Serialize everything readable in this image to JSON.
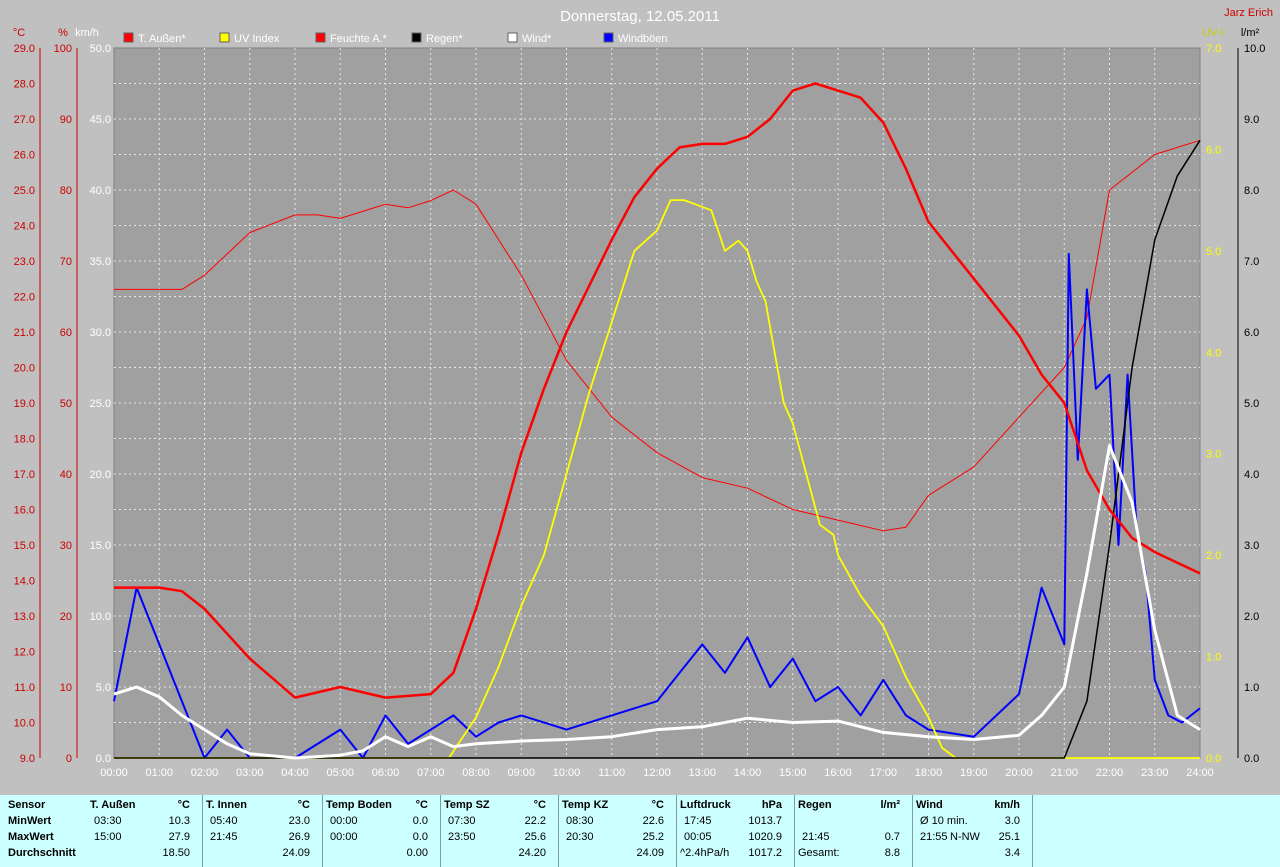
{
  "title": "Donnerstag, 12.05.2011",
  "author": "Jarz Erich",
  "colors": {
    "background": "#c0c0c0",
    "plot_bg": "#a0a0a0",
    "temp": "#ff0000",
    "uv": "#ffff00",
    "humidity": "#ff0000",
    "rain": "#000000",
    "wind": "#ffffff",
    "gust": "#0000ff",
    "stats_bg": "#ccffff"
  },
  "axes": {
    "left_units": [
      "°C",
      "%",
      "km/h"
    ],
    "right_units": [
      "UV-I",
      "l/m²"
    ],
    "temp_ticks": [
      "29.0",
      "28.0",
      "27.0",
      "26.0",
      "25.0",
      "24.0",
      "23.0",
      "22.0",
      "21.0",
      "20.0",
      "19.0",
      "18.0",
      "17.0",
      "16.0",
      "15.0",
      "14.0",
      "13.0",
      "12.0",
      "11.0",
      "10.0",
      "9.0"
    ],
    "hum_ticks": [
      "100",
      "90",
      "80",
      "70",
      "60",
      "50",
      "40",
      "30",
      "20",
      "10",
      "0"
    ],
    "wind_ticks": [
      "50.0",
      "45.0",
      "40.0",
      "35.0",
      "30.0",
      "25.0",
      "20.0",
      "15.0",
      "10.0",
      "5.0",
      "0.0"
    ],
    "uv_ticks": [
      "7.0",
      "6.0",
      "5.0",
      "4.0",
      "3.0",
      "2.0",
      "1.0",
      "0.0"
    ],
    "rain_ticks": [
      "10.0",
      "9.0",
      "8.0",
      "7.0",
      "6.0",
      "5.0",
      "4.0",
      "3.0",
      "2.0",
      "1.0",
      "0.0"
    ],
    "x_ticks": [
      "00:00",
      "01:00",
      "02:00",
      "03:00",
      "04:00",
      "05:00",
      "06:00",
      "07:00",
      "08:00",
      "09:00",
      "10:00",
      "11:00",
      "12:00",
      "13:00",
      "14:00",
      "15:00",
      "16:00",
      "17:00",
      "18:00",
      "19:00",
      "20:00",
      "21:00",
      "22:00",
      "23:00",
      "24:00"
    ]
  },
  "legend": [
    {
      "label": "T. Außen*",
      "color": "#ff0000"
    },
    {
      "label": "UV Index",
      "color": "#ffff00"
    },
    {
      "label": "Feuchte A.*",
      "color": "#ff0000"
    },
    {
      "label": "Regen*",
      "color": "#000000"
    },
    {
      "label": "Wind*",
      "color": "#ffffff"
    },
    {
      "label": "Windböen",
      "color": "#0000ff"
    }
  ],
  "chart_data": {
    "type": "line",
    "title": "Donnerstag, 12.05.2011",
    "grid": true,
    "legend_position": "top",
    "x_range_hours": [
      0,
      24
    ],
    "temp_range": [
      9,
      29
    ],
    "humidity_range": [
      0,
      100
    ],
    "wind_range": [
      0,
      50
    ],
    "uv_range": [
      0,
      7
    ],
    "rain_range": [
      0,
      10
    ],
    "series": [
      {
        "name": "T. Außen*",
        "axis": "°C",
        "x": [
          0,
          1,
          1.5,
          2,
          3,
          4,
          5,
          6,
          7,
          7.5,
          8,
          8.5,
          9,
          9.5,
          10,
          11,
          11.5,
          12,
          12.5,
          13,
          13.5,
          14,
          14.5,
          15,
          15.5,
          16,
          16.5,
          17,
          17.5,
          18,
          19,
          20,
          20.5,
          21,
          21.5,
          22,
          22.5,
          23,
          23.5,
          24
        ],
        "y": [
          13.8,
          13.8,
          13.7,
          13.2,
          11.8,
          10.7,
          11.0,
          10.7,
          10.8,
          11.4,
          13.2,
          15.3,
          17.6,
          19.4,
          21.0,
          23.6,
          24.8,
          25.6,
          26.2,
          26.3,
          26.3,
          26.5,
          27.0,
          27.8,
          28.0,
          27.8,
          27.6,
          26.9,
          25.6,
          24.1,
          22.5,
          20.9,
          19.8,
          19.0,
          17.1,
          16.0,
          15.2,
          14.8,
          14.5,
          14.2
        ]
      },
      {
        "name": "Feuchte A.*",
        "axis": "%",
        "x": [
          0,
          1,
          1.5,
          2,
          3,
          4,
          4.5,
          5,
          6,
          6.5,
          7,
          7.5,
          8,
          9,
          10,
          11,
          12,
          13,
          14,
          15,
          16,
          17,
          17.5,
          18,
          19,
          20,
          21,
          21.5,
          22,
          23,
          24
        ],
        "y": [
          66,
          66,
          66,
          68,
          74,
          76.5,
          76.5,
          76,
          78,
          77.5,
          78.5,
          80,
          78,
          68,
          56,
          48,
          43,
          39.5,
          38,
          35,
          33.5,
          32,
          32.5,
          37,
          41,
          48,
          55,
          62,
          80,
          85,
          87
        ]
      },
      {
        "name": "UV Index",
        "axis": "UV-I",
        "x": [
          0,
          7.4,
          8,
          8.5,
          9,
          9.5,
          10,
          10.5,
          11,
          11.5,
          12,
          12.3,
          12.6,
          12.9,
          13.2,
          13.5,
          13.8,
          14,
          14.2,
          14.4,
          14.6,
          14.8,
          15,
          15.3,
          15.6,
          15.9,
          16,
          16.5,
          17,
          17.5,
          18,
          18.3,
          18.6,
          24
        ],
        "y": [
          0,
          0,
          0.4,
          0.9,
          1.5,
          2.0,
          2.8,
          3.6,
          4.3,
          5.0,
          5.2,
          5.5,
          5.5,
          5.45,
          5.4,
          5.0,
          5.1,
          5.0,
          4.7,
          4.5,
          4.0,
          3.5,
          3.3,
          2.8,
          2.3,
          2.2,
          2.0,
          1.6,
          1.3,
          0.8,
          0.4,
          0.1,
          0,
          0
        ]
      },
      {
        "name": "Regen*",
        "axis": "l/m²",
        "x": [
          0,
          21,
          21.5,
          22,
          22.5,
          23,
          23.5,
          24
        ],
        "y": [
          0,
          0,
          0.8,
          3.0,
          5.5,
          7.3,
          8.2,
          8.7
        ]
      },
      {
        "name": "Wind*",
        "axis": "km/h",
        "x": [
          0,
          0.5,
          1,
          1.5,
          2,
          2.5,
          3,
          4,
          5,
          5.5,
          6,
          6.5,
          7,
          7.5,
          8,
          9,
          10,
          11,
          12,
          13,
          14,
          15,
          16,
          17,
          18,
          19,
          20,
          20.5,
          21,
          21.5,
          22,
          22.5,
          23,
          23.5,
          24
        ],
        "y": [
          4.5,
          5.0,
          4.3,
          3.0,
          2.0,
          1.0,
          0.3,
          0,
          0.2,
          0.5,
          1.5,
          0.8,
          1.5,
          0.8,
          1.0,
          1.2,
          1.3,
          1.5,
          2.0,
          2.2,
          2.8,
          2.5,
          2.6,
          1.8,
          1.5,
          1.3,
          1.6,
          3.0,
          5.0,
          13.0,
          22.0,
          18.0,
          9.0,
          3.0,
          2.0
        ]
      },
      {
        "name": "Windböen",
        "axis": "km/h",
        "x": [
          0,
          0.5,
          1,
          1.5,
          2,
          2.5,
          3,
          4,
          5,
          5.5,
          6,
          6.5,
          7,
          7.5,
          8,
          8.5,
          9,
          10,
          11,
          12,
          12.5,
          13,
          13.5,
          14,
          14.5,
          15,
          15.5,
          16,
          16.5,
          17,
          17.5,
          18,
          19,
          20,
          20.5,
          21,
          21.1,
          21.3,
          21.5,
          21.7,
          22,
          22.2,
          22.4,
          22.6,
          22.8,
          23,
          23.3,
          23.6,
          24
        ],
        "y": [
          4.0,
          12.0,
          8.0,
          4.0,
          0,
          2.0,
          0,
          0,
          2.0,
          0,
          3.0,
          1.0,
          2.0,
          3.0,
          1.5,
          2.5,
          3.0,
          2.0,
          3.0,
          4.0,
          6.0,
          8.0,
          6.0,
          8.5,
          5.0,
          7.0,
          4.0,
          5.0,
          3.0,
          5.5,
          3.0,
          2.0,
          1.5,
          4.5,
          12.0,
          8.0,
          35.5,
          21.0,
          33.0,
          26.0,
          27.0,
          15.0,
          27.0,
          16.0,
          13.0,
          5.5,
          3.0,
          2.5,
          3.5
        ]
      }
    ]
  },
  "stats": {
    "row_labels": [
      "Sensor",
      "MinWert",
      "MaxWert",
      "Durchschnitt"
    ],
    "groups": [
      {
        "name": "T. Außen",
        "unit": "°C",
        "min_time": "03:30",
        "min": "10.3",
        "max_time": "15:00",
        "max": "27.9",
        "avg": "18.50"
      },
      {
        "name": "T. Innen",
        "unit": "°C",
        "min_time": "05:40",
        "min": "23.0",
        "max_time": "21:45",
        "max": "26.9",
        "avg": "24.09"
      },
      {
        "name": "Temp Boden",
        "unit": "°C",
        "min_time": "00:00",
        "min": "0.0",
        "max_time": "00:00",
        "max": "0.0",
        "avg": "0.00"
      },
      {
        "name": "Temp SZ",
        "unit": "°C",
        "min_time": "07:30",
        "min": "22.2",
        "max_time": "23:50",
        "max": "25.6",
        "avg": "24.20"
      },
      {
        "name": "Temp KZ",
        "unit": "°C",
        "min_time": "08:30",
        "min": "22.6",
        "max_time": "20:30",
        "max": "25.2",
        "avg": "24.09"
      },
      {
        "name": "Luftdruck",
        "unit": "hPa",
        "min_time": "17:45",
        "min": "1013.7",
        "max_time": "00:05",
        "max": "1020.9",
        "avg_label": "^2.4hPa/h",
        "avg": "1017.2"
      },
      {
        "name": "Regen",
        "unit": "l/m²",
        "min_time": "",
        "min": "",
        "max_time": "21:45",
        "max": "0.7",
        "avg_label": "Gesamt:",
        "avg": "8.8"
      },
      {
        "name": "Wind",
        "unit": "km/h",
        "min_time": "Ø 10 min.",
        "min": "3.0",
        "max_time": "21:55",
        "max_dir": "N-NW",
        "max": "25.1",
        "avg": "3.4"
      }
    ]
  }
}
